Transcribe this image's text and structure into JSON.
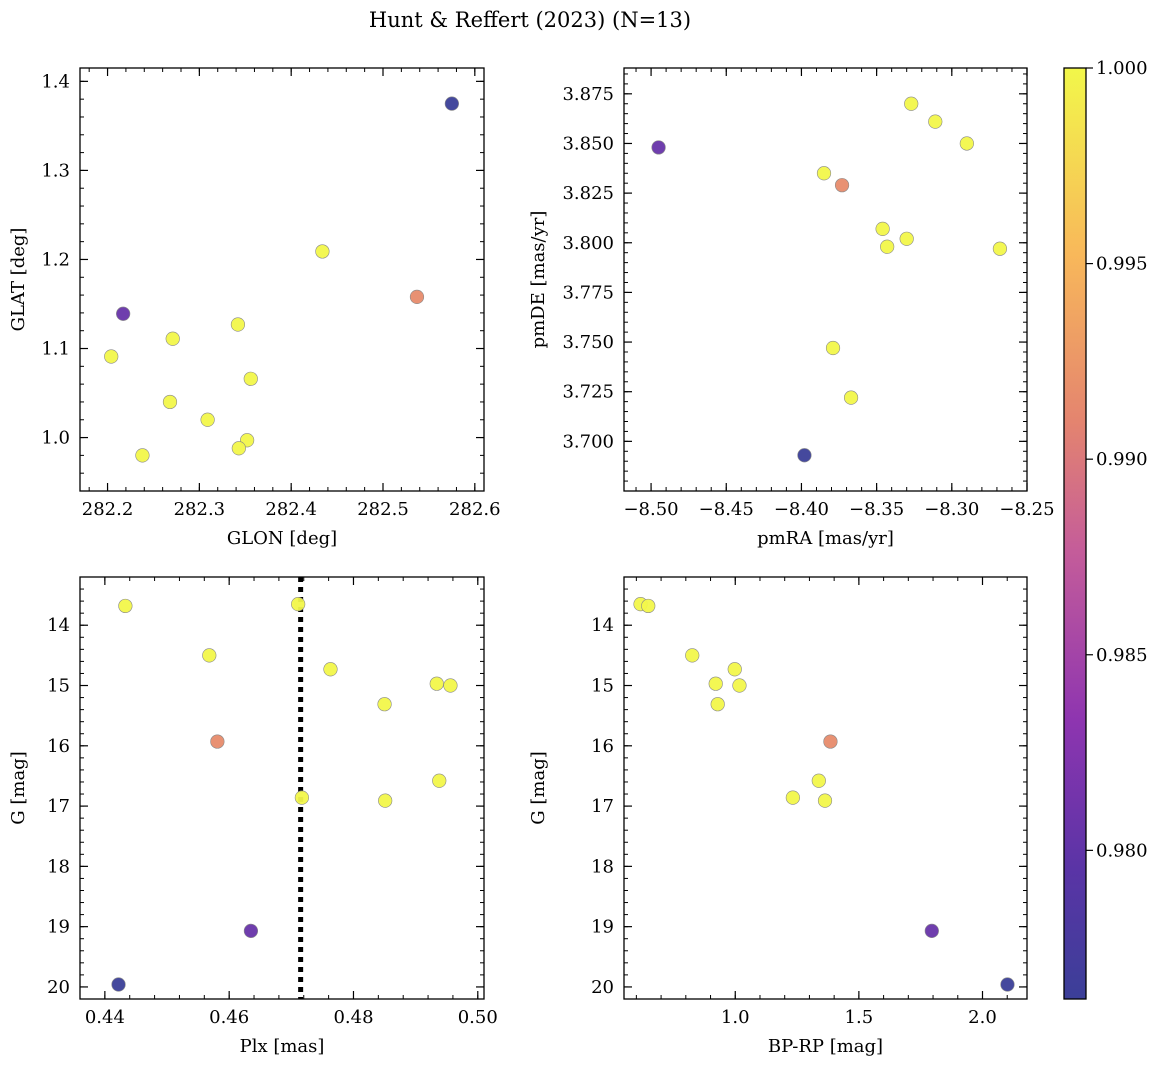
{
  "figure": {
    "title": "Hunt & Reffert (2023) (N=13)"
  },
  "colorbar": {
    "min": 0.9762,
    "max": 1.0,
    "ticks": [
      0.98,
      0.985,
      0.99,
      0.995,
      1.0
    ],
    "tick_labels": [
      "0.980",
      "0.985",
      "0.990",
      "0.995",
      "1.000"
    ],
    "colormap": [
      "#0d0887",
      "#5302a3",
      "#8b0aa5",
      "#b83289",
      "#db5c68",
      "#f48849",
      "#febd2a",
      "#f0f921"
    ]
  },
  "chart_data": [
    {
      "type": "scatter",
      "id": "glon-glat",
      "xlabel": "GLON [deg]",
      "ylabel": "GLAT [deg]",
      "xlim": [
        282.17,
        282.61
      ],
      "ylim": [
        0.94,
        1.415
      ],
      "y_inverted": false,
      "xticks": [
        282.2,
        282.3,
        282.4,
        282.5,
        282.6
      ],
      "xtick_labels": [
        "282.2",
        "282.3",
        "282.4",
        "282.5",
        "282.6"
      ],
      "yticks": [
        1.0,
        1.1,
        1.2,
        1.3,
        1.4
      ],
      "ytick_labels": [
        "1.0",
        "1.1",
        "1.2",
        "1.3",
        "1.4"
      ],
      "xminor": 0.02,
      "yminor": 0.02,
      "points": [
        {
          "x": 282.575,
          "y": 1.375,
          "c": 0.9762
        },
        {
          "x": 282.434,
          "y": 1.209,
          "c": 1.0
        },
        {
          "x": 282.217,
          "y": 1.139,
          "c": 0.9805
        },
        {
          "x": 282.537,
          "y": 1.158,
          "c": 0.9915
        },
        {
          "x": 282.204,
          "y": 1.091,
          "c": 1.0
        },
        {
          "x": 282.271,
          "y": 1.111,
          "c": 1.0
        },
        {
          "x": 282.342,
          "y": 1.127,
          "c": 1.0
        },
        {
          "x": 282.356,
          "y": 1.066,
          "c": 1.0
        },
        {
          "x": 282.268,
          "y": 1.04,
          "c": 1.0
        },
        {
          "x": 282.309,
          "y": 1.02,
          "c": 1.0
        },
        {
          "x": 282.352,
          "y": 0.997,
          "c": 1.0
        },
        {
          "x": 282.343,
          "y": 0.988,
          "c": 1.0
        },
        {
          "x": 282.238,
          "y": 0.98,
          "c": 1.0
        }
      ]
    },
    {
      "type": "scatter",
      "id": "pmra-pmde",
      "xlabel": "pmRA [mas/yr]",
      "ylabel": "pmDE [mas/yr]",
      "xlim": [
        -8.518,
        -8.25
      ],
      "ylim": [
        3.675,
        3.888
      ],
      "y_inverted": false,
      "xticks": [
        -8.5,
        -8.45,
        -8.4,
        -8.35,
        -8.3,
        -8.25
      ],
      "xtick_labels": [
        "−8.50",
        "−8.45",
        "−8.40",
        "−8.35",
        "−8.30",
        "−8.25"
      ],
      "yticks": [
        3.7,
        3.725,
        3.75,
        3.775,
        3.8,
        3.825,
        3.85,
        3.875
      ],
      "ytick_labels": [
        "3.700",
        "3.725",
        "3.750",
        "3.775",
        "3.800",
        "3.825",
        "3.850",
        "3.875"
      ],
      "xminor": 0.01,
      "yminor": 0.005,
      "points": [
        {
          "x": -8.495,
          "y": 3.848,
          "c": 0.9805
        },
        {
          "x": -8.398,
          "y": 3.693,
          "c": 0.9762
        },
        {
          "x": -8.373,
          "y": 3.829,
          "c": 0.9915
        },
        {
          "x": -8.385,
          "y": 3.835,
          "c": 1.0
        },
        {
          "x": -8.327,
          "y": 3.87,
          "c": 1.0
        },
        {
          "x": -8.311,
          "y": 3.861,
          "c": 1.0
        },
        {
          "x": -8.29,
          "y": 3.85,
          "c": 1.0
        },
        {
          "x": -8.346,
          "y": 3.807,
          "c": 1.0
        },
        {
          "x": -8.343,
          "y": 3.798,
          "c": 1.0
        },
        {
          "x": -8.33,
          "y": 3.802,
          "c": 1.0
        },
        {
          "x": -8.268,
          "y": 3.797,
          "c": 1.0
        },
        {
          "x": -8.379,
          "y": 3.747,
          "c": 1.0
        },
        {
          "x": -8.367,
          "y": 3.722,
          "c": 1.0
        }
      ]
    },
    {
      "type": "scatter",
      "id": "plx-g",
      "xlabel": "Plx [mas]",
      "ylabel": "G [mag]",
      "xlim": [
        0.436,
        0.501
      ],
      "ylim": [
        20.2,
        13.2
      ],
      "y_inverted": true,
      "vline": {
        "x": 0.4715,
        "style": "dotted"
      },
      "xticks": [
        0.44,
        0.46,
        0.48,
        0.5
      ],
      "xtick_labels": [
        "0.44",
        "0.46",
        "0.48",
        "0.50"
      ],
      "yticks": [
        14,
        15,
        16,
        17,
        18,
        19,
        20
      ],
      "ytick_labels": [
        "14",
        "15",
        "16",
        "17",
        "18",
        "19",
        "20"
      ],
      "xminor": 0.004,
      "yminor": 0.2,
      "points": [
        {
          "x": 0.4433,
          "y": 13.68,
          "c": 1.0
        },
        {
          "x": 0.4711,
          "y": 13.65,
          "c": 1.0
        },
        {
          "x": 0.4568,
          "y": 14.5,
          "c": 1.0
        },
        {
          "x": 0.4763,
          "y": 14.73,
          "c": 1.0
        },
        {
          "x": 0.4934,
          "y": 14.97,
          "c": 1.0
        },
        {
          "x": 0.4956,
          "y": 15.0,
          "c": 1.0
        },
        {
          "x": 0.485,
          "y": 15.31,
          "c": 1.0
        },
        {
          "x": 0.4581,
          "y": 15.93,
          "c": 0.9915
        },
        {
          "x": 0.4938,
          "y": 16.58,
          "c": 1.0
        },
        {
          "x": 0.4717,
          "y": 16.86,
          "c": 1.0
        },
        {
          "x": 0.4851,
          "y": 16.91,
          "c": 1.0
        },
        {
          "x": 0.4635,
          "y": 19.07,
          "c": 0.9805
        },
        {
          "x": 0.4422,
          "y": 19.96,
          "c": 0.9762
        }
      ]
    },
    {
      "type": "scatter",
      "id": "bprp-g",
      "xlabel": "BP-RP [mag]",
      "ylabel": "G [mag]",
      "xlim": [
        0.55,
        2.18
      ],
      "ylim": [
        20.2,
        13.2
      ],
      "y_inverted": true,
      "xticks": [
        1.0,
        1.5,
        2.0
      ],
      "xtick_labels": [
        "1.0",
        "1.5",
        "2.0"
      ],
      "yticks": [
        14,
        15,
        16,
        17,
        18,
        19,
        20
      ],
      "ytick_labels": [
        "14",
        "15",
        "16",
        "17",
        "18",
        "19",
        "20"
      ],
      "xminor": 0.1,
      "yminor": 0.2,
      "points": [
        {
          "x": 0.617,
          "y": 13.65,
          "c": 1.0
        },
        {
          "x": 0.648,
          "y": 13.68,
          "c": 1.0
        },
        {
          "x": 0.826,
          "y": 14.5,
          "c": 1.0
        },
        {
          "x": 0.998,
          "y": 14.73,
          "c": 1.0
        },
        {
          "x": 0.921,
          "y": 14.97,
          "c": 1.0
        },
        {
          "x": 1.017,
          "y": 15.0,
          "c": 1.0
        },
        {
          "x": 0.929,
          "y": 15.31,
          "c": 1.0
        },
        {
          "x": 1.385,
          "y": 15.93,
          "c": 0.9915
        },
        {
          "x": 1.338,
          "y": 16.58,
          "c": 1.0
        },
        {
          "x": 1.233,
          "y": 16.86,
          "c": 1.0
        },
        {
          "x": 1.363,
          "y": 16.91,
          "c": 1.0
        },
        {
          "x": 1.795,
          "y": 19.07,
          "c": 0.9805
        },
        {
          "x": 2.101,
          "y": 19.96,
          "c": 0.9762
        }
      ]
    }
  ]
}
